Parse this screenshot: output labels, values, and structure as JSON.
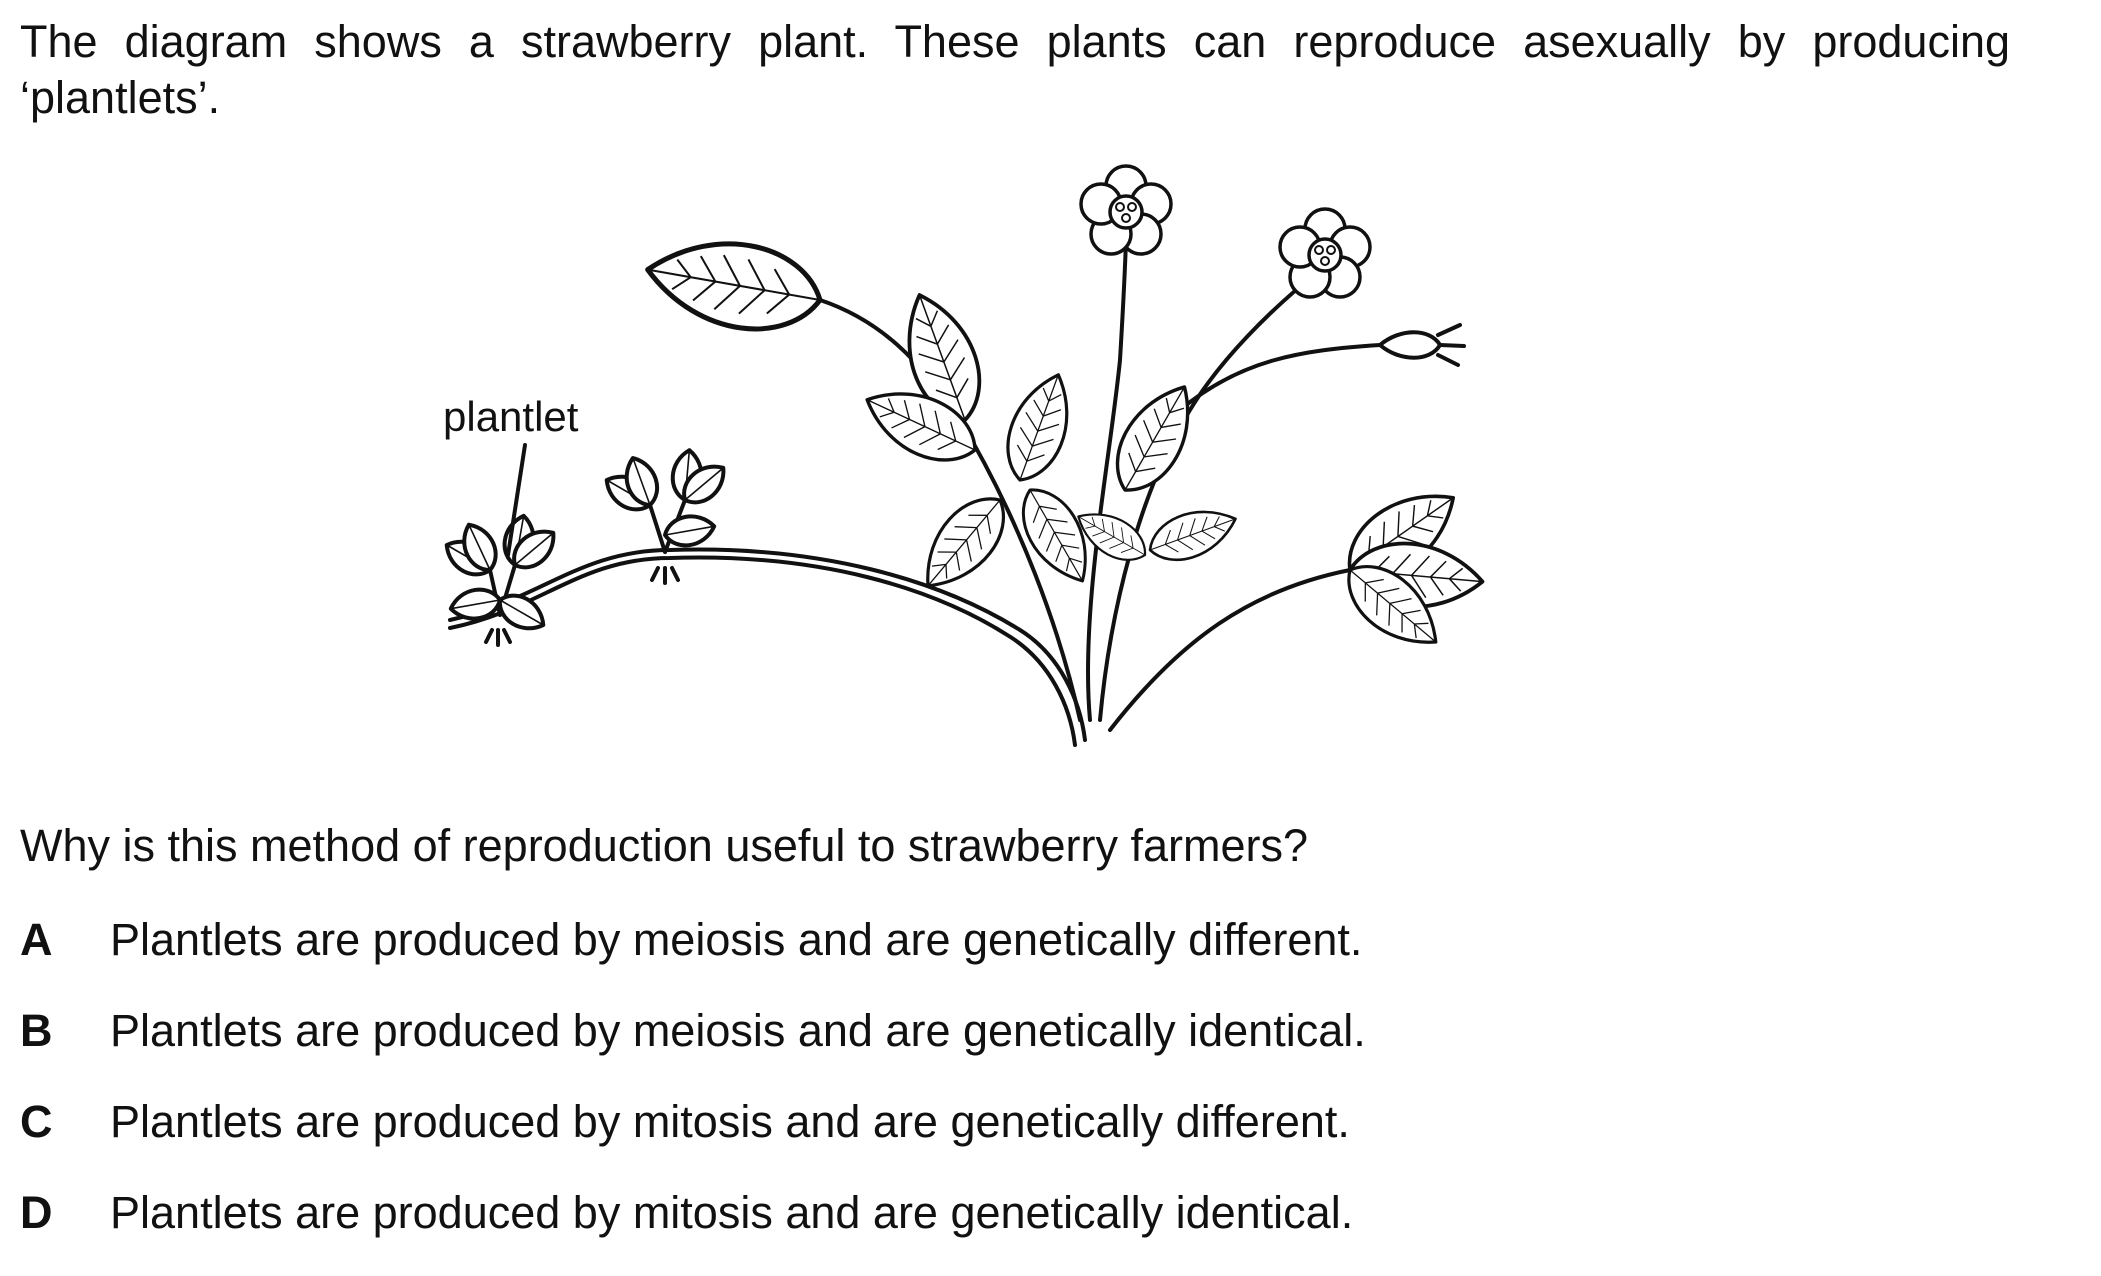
{
  "question": {
    "intro": "The diagram shows a strawberry plant. These plants can reproduce asexually by producing ‘plantlets’.",
    "figure_label": "plantlet",
    "prompt": "Why is this method of reproduction useful to strawberry farmers?",
    "options": [
      {
        "letter": "A",
        "text": "Plantlets are produced by meiosis and are genetically different."
      },
      {
        "letter": "B",
        "text": "Plantlets are produced by meiosis and are genetically identical."
      },
      {
        "letter": "C",
        "text": "Plantlets are produced by mitosis and are genetically different."
      },
      {
        "letter": "D",
        "text": "Plantlets are produced by mitosis and are genetically identical."
      }
    ]
  }
}
